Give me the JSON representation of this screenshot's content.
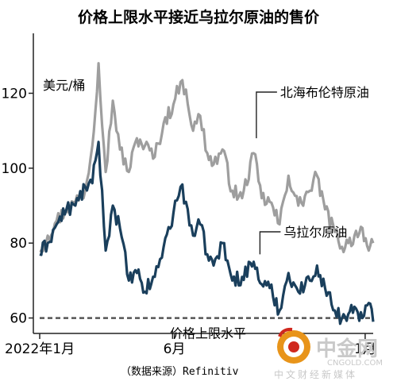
{
  "chart_data": {
    "type": "line",
    "title": "价格上限水平接近乌拉尔原油的售价",
    "unit_label": "美元/桶",
    "ylim": [
      58,
      136
    ],
    "y_ticks": [
      60,
      80,
      100,
      120
    ],
    "x_domain": [
      "2022-01-01",
      "2023-01-10"
    ],
    "x_ticks": [
      {
        "date": "2022-01-01",
        "label": "2022年1月"
      },
      {
        "date": "2022-06-01",
        "label": "6月"
      },
      {
        "date": "2023-01-01",
        "label": "1月"
      }
    ],
    "grid": false,
    "reference_line": {
      "value": 60,
      "label": "价格上限水平"
    },
    "source": "（数据来源）Refinitiv",
    "series": [
      {
        "name": "北海布伦特原油",
        "color": "#9e9e9e",
        "points": [
          [
            "2022-01-01",
            78
          ],
          [
            "2022-01-10",
            82
          ],
          [
            "2022-01-20",
            86
          ],
          [
            "2022-01-31",
            89
          ],
          [
            "2022-02-10",
            91
          ],
          [
            "2022-02-21",
            94
          ],
          [
            "2022-03-01",
            106
          ],
          [
            "2022-03-08",
            128
          ],
          [
            "2022-03-16",
            99
          ],
          [
            "2022-03-24",
            118
          ],
          [
            "2022-04-01",
            105
          ],
          [
            "2022-04-11",
            99
          ],
          [
            "2022-04-20",
            108
          ],
          [
            "2022-04-29",
            106
          ],
          [
            "2022-05-10",
            103
          ],
          [
            "2022-05-20",
            112
          ],
          [
            "2022-05-31",
            117
          ],
          [
            "2022-06-08",
            123
          ],
          [
            "2022-06-14",
            121
          ],
          [
            "2022-06-22",
            110
          ],
          [
            "2022-06-30",
            114
          ],
          [
            "2022-07-08",
            104
          ],
          [
            "2022-07-15",
            101
          ],
          [
            "2022-07-25",
            105
          ],
          [
            "2022-08-05",
            94
          ],
          [
            "2022-08-16",
            92
          ],
          [
            "2022-08-29",
            104
          ],
          [
            "2022-09-07",
            92
          ],
          [
            "2022-09-16",
            91
          ],
          [
            "2022-09-27",
            85
          ],
          [
            "2022-10-07",
            98
          ],
          [
            "2022-10-18",
            90
          ],
          [
            "2022-10-31",
            94
          ],
          [
            "2022-11-08",
            98
          ],
          [
            "2022-11-17",
            89
          ],
          [
            "2022-11-28",
            83
          ],
          [
            "2022-12-06",
            79
          ],
          [
            "2022-12-13",
            80
          ],
          [
            "2022-12-20",
            82
          ],
          [
            "2022-12-29",
            84
          ],
          [
            "2023-01-05",
            78
          ],
          [
            "2023-01-10",
            80
          ]
        ]
      },
      {
        "name": "乌拉尔原油",
        "color": "#1a3f5c",
        "points": [
          [
            "2022-01-01",
            77
          ],
          [
            "2022-01-10",
            80
          ],
          [
            "2022-01-20",
            85
          ],
          [
            "2022-01-31",
            89
          ],
          [
            "2022-02-10",
            90
          ],
          [
            "2022-02-21",
            95
          ],
          [
            "2022-03-01",
            96
          ],
          [
            "2022-03-08",
            107
          ],
          [
            "2022-03-16",
            78
          ],
          [
            "2022-03-24",
            90
          ],
          [
            "2022-04-01",
            84
          ],
          [
            "2022-04-11",
            70
          ],
          [
            "2022-04-20",
            72
          ],
          [
            "2022-04-29",
            67
          ],
          [
            "2022-05-10",
            71
          ],
          [
            "2022-05-20",
            79
          ],
          [
            "2022-05-31",
            88
          ],
          [
            "2022-06-08",
            95
          ],
          [
            "2022-06-14",
            91
          ],
          [
            "2022-06-22",
            82
          ],
          [
            "2022-06-30",
            85
          ],
          [
            "2022-07-08",
            77
          ],
          [
            "2022-07-15",
            74
          ],
          [
            "2022-07-25",
            80
          ],
          [
            "2022-08-05",
            70
          ],
          [
            "2022-08-16",
            71
          ],
          [
            "2022-08-29",
            75
          ],
          [
            "2022-09-07",
            69
          ],
          [
            "2022-09-16",
            68
          ],
          [
            "2022-09-27",
            62
          ],
          [
            "2022-10-07",
            72
          ],
          [
            "2022-10-18",
            67
          ],
          [
            "2022-10-31",
            70
          ],
          [
            "2022-11-08",
            74
          ],
          [
            "2022-11-17",
            68
          ],
          [
            "2022-11-28",
            62
          ],
          [
            "2022-12-06",
            60
          ],
          [
            "2022-12-13",
            61
          ],
          [
            "2022-12-20",
            63
          ],
          [
            "2022-12-29",
            60
          ],
          [
            "2023-01-05",
            64
          ],
          [
            "2023-01-10",
            59
          ]
        ]
      }
    ]
  },
  "watermark": {
    "brand": "中金网",
    "domain": "CNGOLD.COM",
    "tagline": "中文财经新媒体"
  }
}
